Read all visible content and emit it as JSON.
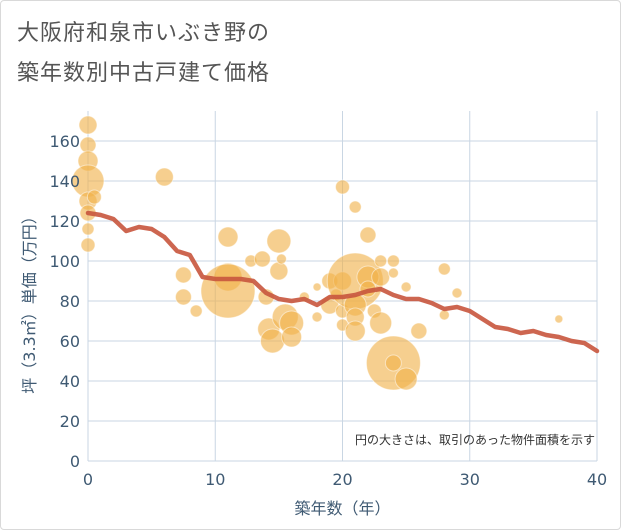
{
  "title_lines": [
    "大阪府和泉市いぶき野の",
    "築年数別中古戸建て価格"
  ],
  "chart_data": {
    "type": "scatter",
    "xlabel": "築年数（年）",
    "ylabel": "坪（3.3㎡）単価（万円）",
    "xlim": [
      0,
      40
    ],
    "ylim": [
      0,
      175
    ],
    "xticks": [
      0,
      10,
      20,
      30,
      40
    ],
    "yticks": [
      0,
      20,
      40,
      60,
      80,
      100,
      120,
      140,
      160
    ],
    "grid": true,
    "note": "円の大きさは、取引のあった物件面積を示す",
    "colors": {
      "bubble": "#f0b24a",
      "line": "#c8553d",
      "grid": "#c9d6e3"
    },
    "bubbles": [
      {
        "x": 0,
        "y": 168,
        "s": 9
      },
      {
        "x": 0,
        "y": 158,
        "s": 8
      },
      {
        "x": 0,
        "y": 150,
        "s": 10
      },
      {
        "x": 0,
        "y": 140,
        "s": 16
      },
      {
        "x": 0,
        "y": 130,
        "s": 9
      },
      {
        "x": 0,
        "y": 124,
        "s": 8
      },
      {
        "x": 0,
        "y": 116,
        "s": 6
      },
      {
        "x": 0,
        "y": 108,
        "s": 7
      },
      {
        "x": 0.5,
        "y": 132,
        "s": 7
      },
      {
        "x": 6,
        "y": 142,
        "s": 9
      },
      {
        "x": 7.5,
        "y": 93,
        "s": 8
      },
      {
        "x": 7.5,
        "y": 82,
        "s": 8
      },
      {
        "x": 8.5,
        "y": 75,
        "s": 6
      },
      {
        "x": 11,
        "y": 112,
        "s": 10
      },
      {
        "x": 11,
        "y": 92,
        "s": 14
      },
      {
        "x": 11,
        "y": 85,
        "s": 27
      },
      {
        "x": 12.8,
        "y": 100,
        "s": 6
      },
      {
        "x": 13.7,
        "y": 101,
        "s": 8
      },
      {
        "x": 14,
        "y": 82,
        "s": 8
      },
      {
        "x": 14.2,
        "y": 66,
        "s": 11
      },
      {
        "x": 14.5,
        "y": 60,
        "s": 12
      },
      {
        "x": 15,
        "y": 110,
        "s": 12
      },
      {
        "x": 15,
        "y": 95,
        "s": 9
      },
      {
        "x": 15.2,
        "y": 101,
        "s": 5
      },
      {
        "x": 15.5,
        "y": 72,
        "s": 13
      },
      {
        "x": 16,
        "y": 69,
        "s": 12
      },
      {
        "x": 16,
        "y": 62,
        "s": 10
      },
      {
        "x": 17,
        "y": 82,
        "s": 5
      },
      {
        "x": 18,
        "y": 87,
        "s": 4
      },
      {
        "x": 18,
        "y": 72,
        "s": 5
      },
      {
        "x": 19,
        "y": 90,
        "s": 8
      },
      {
        "x": 19,
        "y": 78,
        "s": 9
      },
      {
        "x": 19.5,
        "y": 83,
        "s": 6
      },
      {
        "x": 20,
        "y": 137,
        "s": 7
      },
      {
        "x": 20,
        "y": 90,
        "s": 9
      },
      {
        "x": 20,
        "y": 75,
        "s": 7
      },
      {
        "x": 20,
        "y": 68,
        "s": 6
      },
      {
        "x": 21,
        "y": 127,
        "s": 6
      },
      {
        "x": 21,
        "y": 90,
        "s": 28
      },
      {
        "x": 21,
        "y": 78,
        "s": 11
      },
      {
        "x": 21,
        "y": 72,
        "s": 9
      },
      {
        "x": 21,
        "y": 65,
        "s": 10
      },
      {
        "x": 22,
        "y": 113,
        "s": 8
      },
      {
        "x": 22,
        "y": 92,
        "s": 11
      },
      {
        "x": 22,
        "y": 86,
        "s": 8
      },
      {
        "x": 22.5,
        "y": 75,
        "s": 7
      },
      {
        "x": 23,
        "y": 100,
        "s": 6
      },
      {
        "x": 23,
        "y": 92,
        "s": 9
      },
      {
        "x": 23,
        "y": 69,
        "s": 11
      },
      {
        "x": 24,
        "y": 100,
        "s": 6
      },
      {
        "x": 24,
        "y": 94,
        "s": 5
      },
      {
        "x": 24,
        "y": 49,
        "s": 27
      },
      {
        "x": 24,
        "y": 49,
        "s": 8
      },
      {
        "x": 25,
        "y": 87,
        "s": 5
      },
      {
        "x": 25,
        "y": 41,
        "s": 11
      },
      {
        "x": 26,
        "y": 65,
        "s": 8
      },
      {
        "x": 28,
        "y": 96,
        "s": 6
      },
      {
        "x": 28,
        "y": 73,
        "s": 5
      },
      {
        "x": 29,
        "y": 84,
        "s": 5
      },
      {
        "x": 37,
        "y": 71,
        "s": 4
      }
    ],
    "line": {
      "x": [
        0,
        1,
        2,
        3,
        4,
        5,
        6,
        7,
        8,
        9,
        10,
        11,
        12,
        13,
        14,
        15,
        16,
        17,
        18,
        19,
        20,
        21,
        22,
        23,
        24,
        25,
        26,
        27,
        28,
        29,
        30,
        31,
        32,
        33,
        34,
        35,
        36,
        37,
        38,
        39,
        40
      ],
      "y": [
        124,
        123,
        121,
        115,
        117,
        116,
        112,
        105,
        103,
        92,
        91,
        91,
        91,
        90,
        84,
        81,
        80,
        81,
        78,
        82,
        82,
        83,
        85,
        86,
        83,
        81,
        81,
        79,
        76,
        77,
        75,
        71,
        67,
        66,
        64,
        65,
        63,
        62,
        60,
        59,
        55
      ]
    }
  }
}
